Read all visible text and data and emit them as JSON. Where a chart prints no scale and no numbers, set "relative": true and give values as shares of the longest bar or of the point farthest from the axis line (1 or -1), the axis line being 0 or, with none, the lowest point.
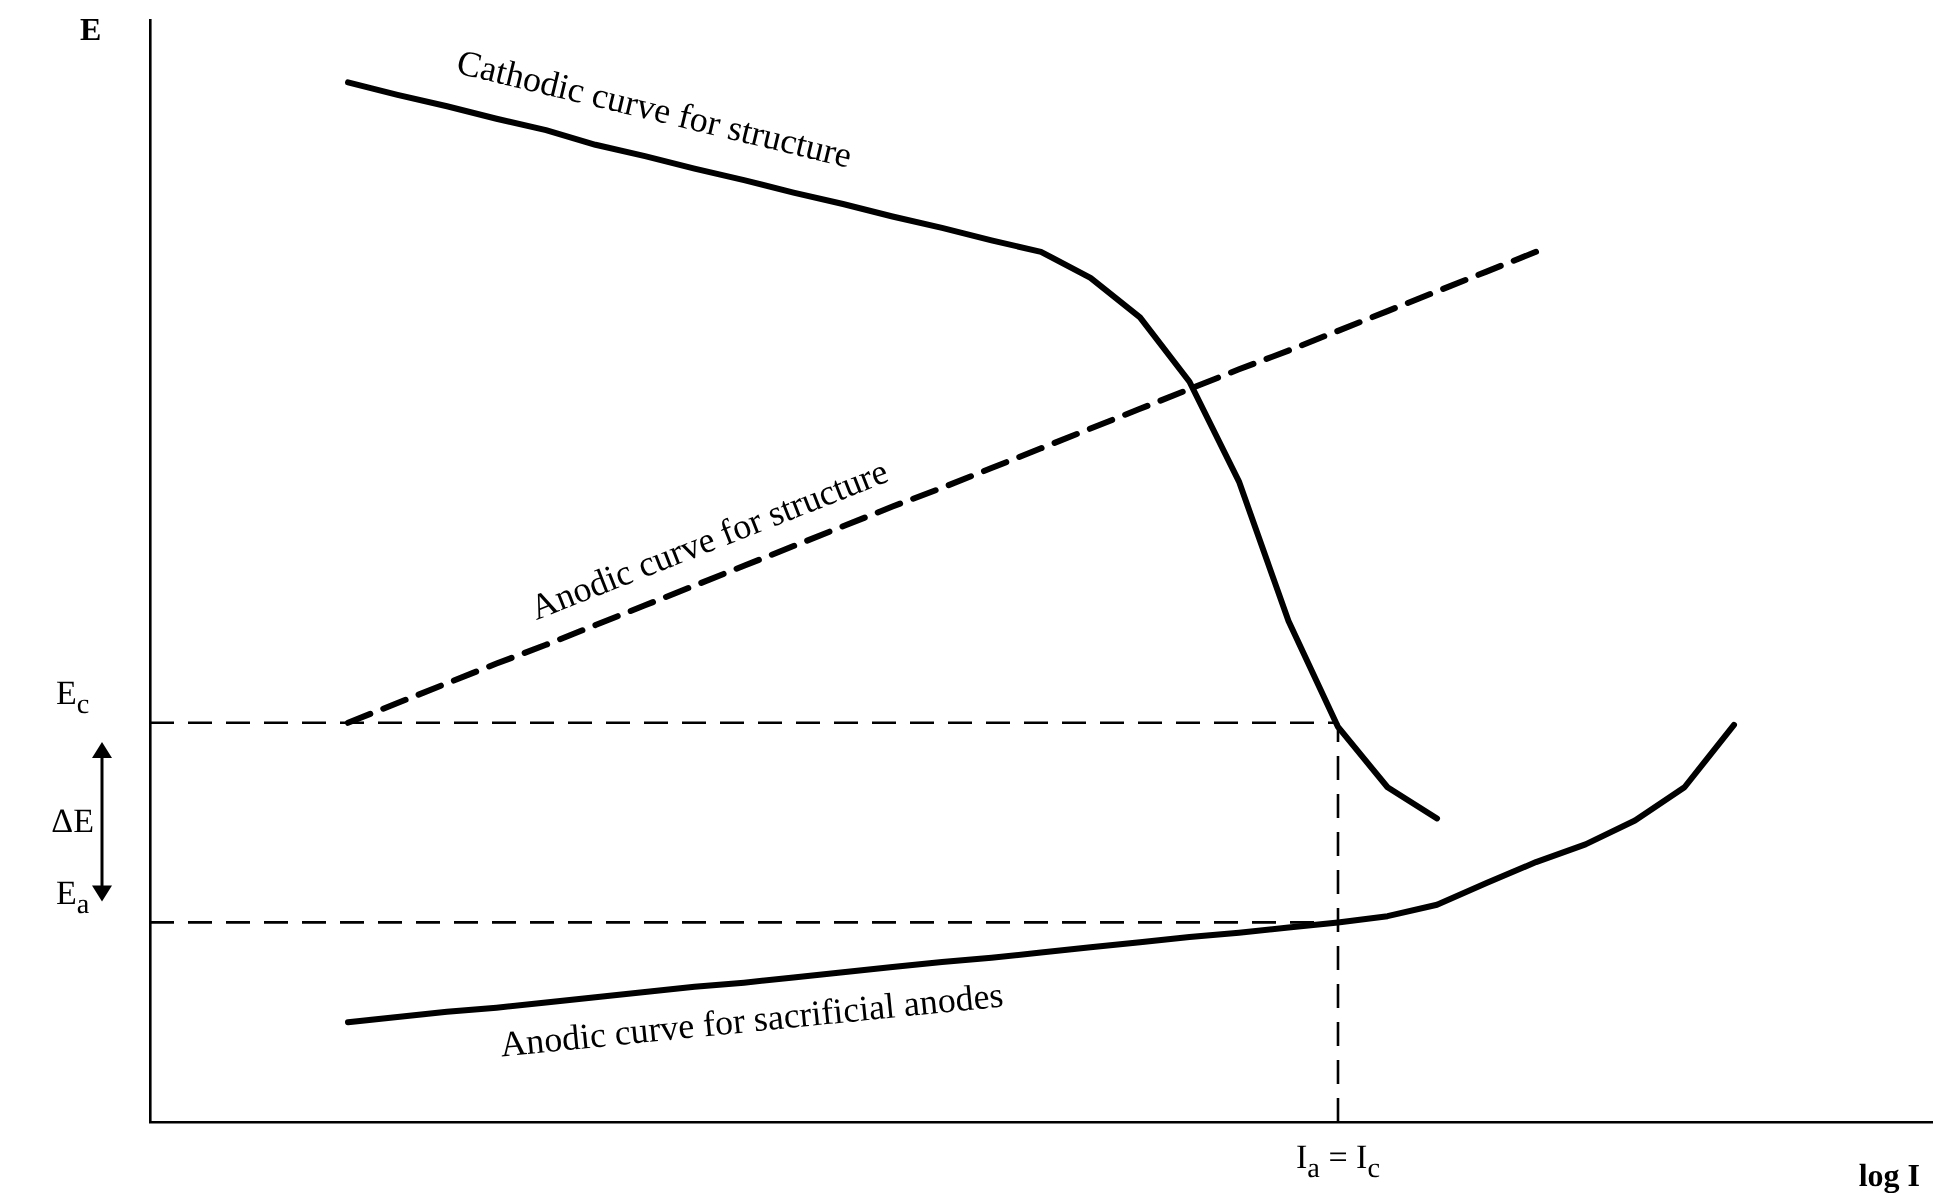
{
  "chart_data": {
    "type": "line",
    "xlabel": "log I",
    "ylabel": "E",
    "relative": true,
    "grid": false,
    "legend": false,
    "marker": "none",
    "line_style": "solid",
    "categories": [
      null,
      null,
      null,
      null,
      null,
      null,
      null,
      null,
      null,
      null,
      null,
      null,
      null,
      null,
      null,
      null,
      null,
      null,
      null,
      null,
      null,
      null,
      null,
      null,
      null,
      null,
      null,
      null,
      null,
      null,
      null,
      null,
      null,
      null,
      null,
      null,
      null
    ],
    "series": [
      {
        "name": "Cathodic curve for structure",
        "color": "#000000",
        "values": [
          null,
          null,
          null,
          null,
          1.0,
          0.988,
          0.977,
          0.965,
          0.954,
          0.94,
          0.929,
          0.917,
          0.906,
          0.894,
          0.883,
          0.871,
          0.86,
          0.848,
          0.837,
          0.812,
          0.774,
          0.712,
          0.616,
          0.482,
          0.38,
          0.322,
          0.292,
          null,
          null,
          null,
          null,
          null,
          null,
          null,
          null,
          null,
          null
        ]
      },
      {
        "name": "Anodic curve for structure",
        "color": "#000000",
        "line_style": "dashed",
        "values": [
          null,
          null,
          null,
          null,
          0.384,
          0.403,
          0.422,
          0.441,
          0.459,
          0.478,
          0.497,
          0.516,
          0.535,
          0.554,
          0.573,
          0.592,
          0.61,
          0.629,
          0.648,
          0.667,
          0.686,
          0.705,
          0.724,
          0.742,
          0.761,
          0.78,
          0.799,
          0.818,
          0.837,
          null,
          null,
          null,
          null,
          null,
          null,
          null,
          null
        ]
      },
      {
        "name": "Anodic curve for sacrificial anodes",
        "color": "#000000",
        "values": [
          null,
          null,
          null,
          null,
          0.096,
          0.101,
          0.106,
          0.11,
          0.115,
          0.12,
          0.125,
          0.13,
          0.134,
          0.139,
          0.144,
          0.149,
          0.154,
          0.158,
          0.163,
          0.168,
          0.173,
          0.178,
          0.182,
          0.187,
          0.192,
          0.198,
          0.209,
          0.23,
          0.25,
          0.267,
          0.29,
          0.322,
          0.382,
          null,
          null,
          null,
          null
        ]
      }
    ],
    "ref_lines": [
      {
        "axis": "y",
        "value": 0.384,
        "label": "E$_{c}$",
        "line_style": "dashed"
      },
      {
        "axis": "y",
        "value": 0.192,
        "label": "E$_{a}$",
        "line_style": "dashed"
      }
    ],
    "annotations": [
      "ΔE",
      "I$_{a}$ = I$_{c}$"
    ]
  }
}
